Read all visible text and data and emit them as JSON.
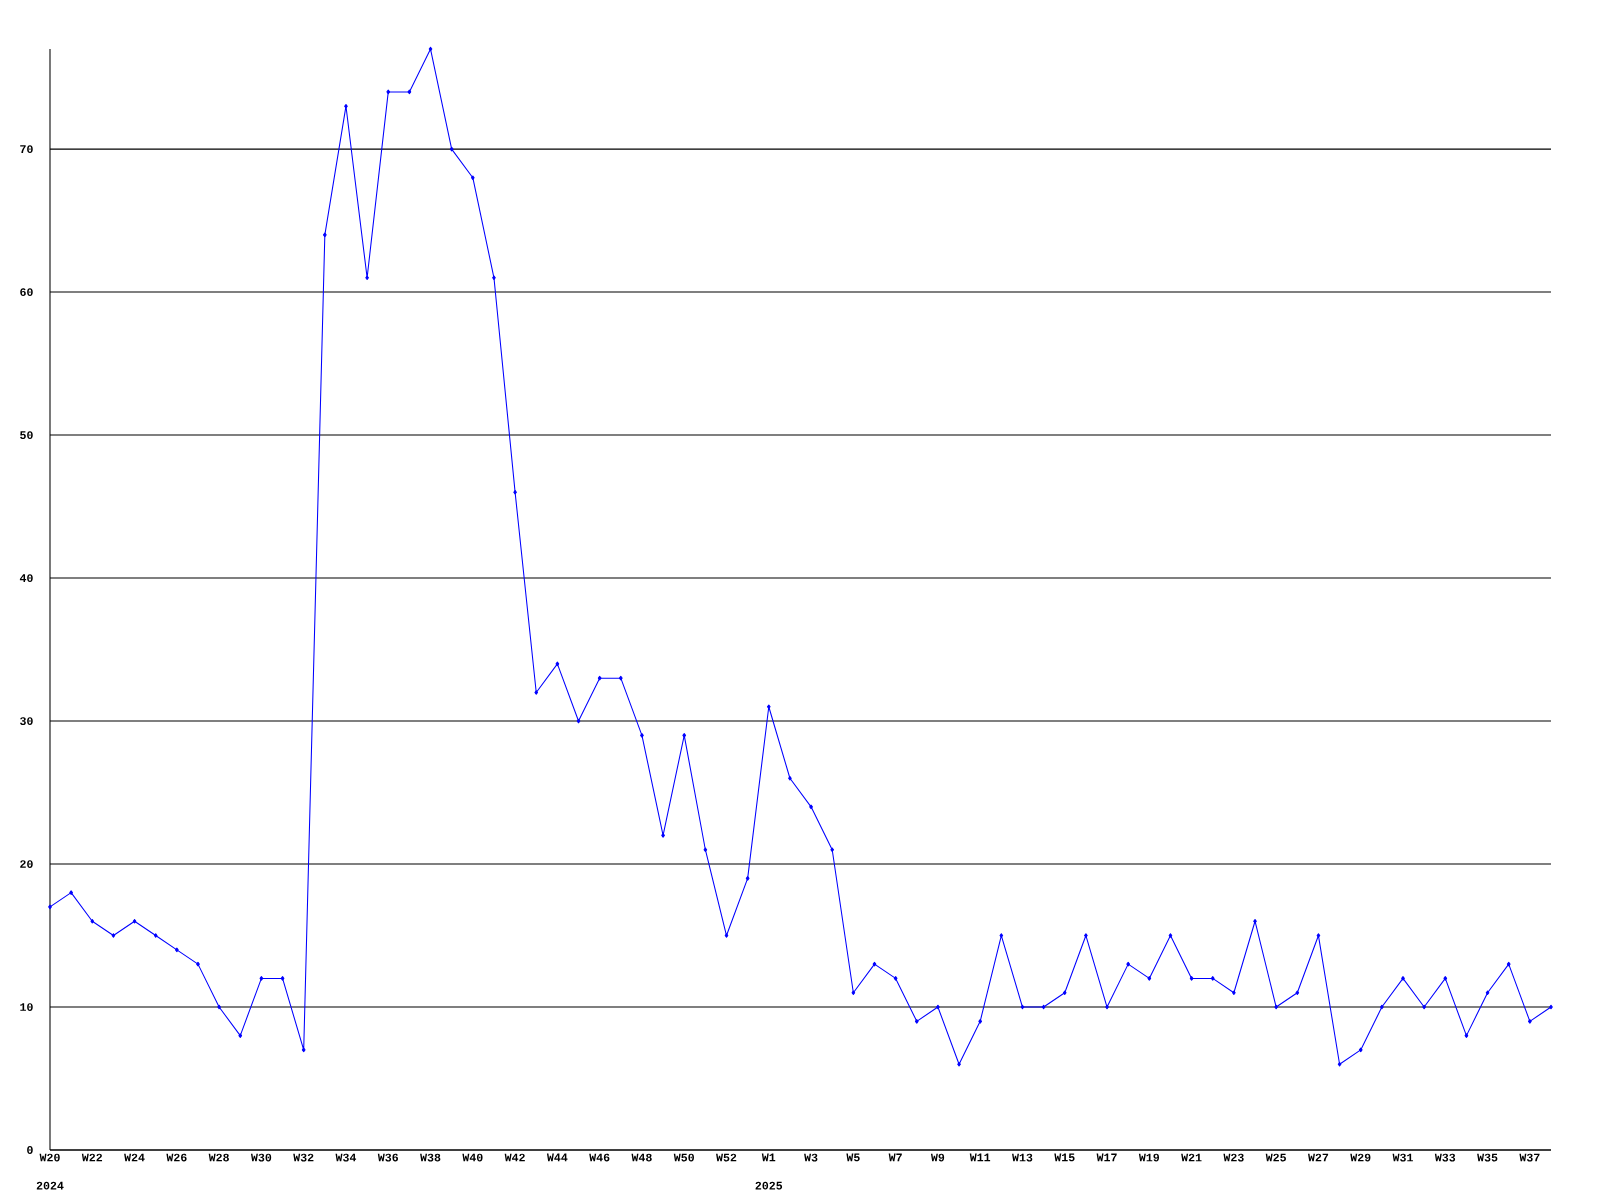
{
  "chart_data": {
    "type": "line",
    "categories": [
      "W20",
      null,
      "W22",
      null,
      "W24",
      null,
      "W26",
      null,
      "W28",
      null,
      "W30",
      null,
      "W32",
      null,
      "W34",
      null,
      "W36",
      null,
      "W38",
      null,
      "W40",
      null,
      "W42",
      null,
      "W44",
      null,
      "W46",
      null,
      "W48",
      null,
      "W50",
      null,
      "W52",
      null,
      "W1",
      null,
      "W3",
      null,
      "W5",
      null,
      "W7",
      null,
      "W9",
      null,
      "W11",
      null,
      "W13",
      null,
      "W15",
      null,
      "W17",
      null,
      "W19",
      null,
      "W21",
      null,
      "W23",
      null,
      "W25",
      null,
      "W27",
      null,
      "W29",
      null,
      "W31",
      null,
      "W33",
      null,
      "W35",
      null,
      "W37",
      null
    ],
    "series": [
      {
        "color": "#0000ff",
        "values": [
          17,
          18,
          16,
          15,
          16,
          15,
          14,
          13,
          10,
          8,
          12,
          12,
          7,
          64,
          73,
          61,
          74,
          74,
          77,
          70,
          68,
          61,
          46,
          32,
          34,
          30,
          33,
          33,
          29,
          22,
          29,
          21,
          15,
          19,
          31,
          26,
          24,
          21,
          11,
          13,
          12,
          9,
          10,
          6,
          9,
          15,
          10,
          10,
          11,
          15,
          10,
          13,
          12,
          15,
          12,
          12,
          11,
          16,
          10,
          11,
          15,
          6,
          7,
          10,
          12,
          10,
          12,
          8,
          11,
          13,
          9,
          10
        ]
      }
    ],
    "annotations": [
      "2024",
      "2025"
    ],
    "ylim": [
      0,
      77
    ],
    "yticks": [
      0,
      10,
      20,
      30,
      40,
      50,
      60,
      70
    ],
    "grid": "y",
    "marker": "diamond",
    "line_style": "solid"
  }
}
